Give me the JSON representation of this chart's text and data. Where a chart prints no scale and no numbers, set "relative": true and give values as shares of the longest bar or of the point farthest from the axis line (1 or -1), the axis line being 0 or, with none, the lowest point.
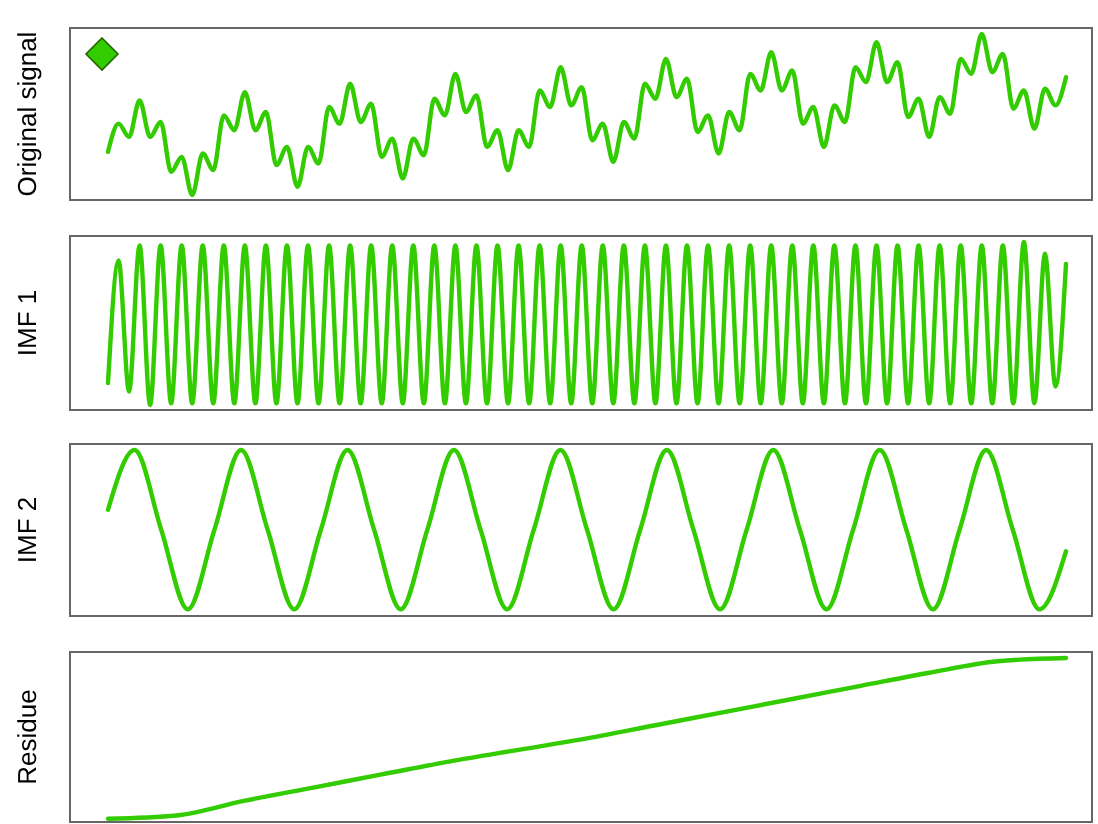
{
  "chart_data": [
    {
      "type": "line",
      "ylabel": "Original signal",
      "relative": true,
      "color": "#33cc00",
      "categories": [
        null,
        null,
        null,
        null,
        null,
        null,
        null,
        null,
        null,
        null,
        null,
        null,
        null,
        null,
        null,
        null,
        null,
        null,
        null,
        null,
        null,
        null,
        null,
        null,
        null,
        null,
        null,
        null,
        null,
        null,
        null,
        null,
        null,
        null,
        null,
        null,
        null,
        null,
        null,
        null,
        null,
        null,
        null,
        null,
        null,
        null,
        null,
        null,
        null,
        null,
        null,
        null,
        null,
        null,
        null,
        null,
        null,
        null,
        null,
        null,
        null,
        null,
        null,
        null,
        null,
        null,
        null,
        null,
        null,
        null,
        null,
        null,
        null,
        null,
        null,
        null,
        null,
        null,
        null,
        null,
        null,
        null,
        null,
        null,
        null,
        null,
        null,
        null,
        null,
        null,
        null,
        null
      ],
      "values": [
        0.29,
        0.46,
        0.38,
        0.6,
        0.38,
        0.47,
        0.17,
        0.26,
        0.03,
        0.28,
        0.18,
        0.51,
        0.42,
        0.65,
        0.42,
        0.53,
        0.21,
        0.32,
        0.08,
        0.32,
        0.22,
        0.56,
        0.46,
        0.7,
        0.47,
        0.58,
        0.26,
        0.37,
        0.13,
        0.37,
        0.27,
        0.61,
        0.51,
        0.76,
        0.53,
        0.63,
        0.32,
        0.42,
        0.18,
        0.42,
        0.32,
        0.66,
        0.56,
        0.8,
        0.57,
        0.68,
        0.36,
        0.46,
        0.23,
        0.47,
        0.37,
        0.7,
        0.61,
        0.85,
        0.62,
        0.73,
        0.41,
        0.51,
        0.28,
        0.53,
        0.42,
        0.76,
        0.66,
        0.89,
        0.66,
        0.78,
        0.46,
        0.56,
        0.32,
        0.57,
        0.47,
        0.8,
        0.71,
        0.95,
        0.71,
        0.83,
        0.5,
        0.61,
        0.38,
        0.62,
        0.52,
        0.85,
        0.76,
        1.0,
        0.77,
        0.88,
        0.55,
        0.66,
        0.43,
        0.67,
        0.57,
        0.74
      ]
    },
    {
      "type": "line",
      "ylabel": "IMF 1",
      "relative": true,
      "color": "#33cc00",
      "categories": [
        null,
        null,
        null,
        null,
        null,
        null,
        null,
        null,
        null,
        null,
        null,
        null,
        null,
        null,
        null,
        null,
        null,
        null,
        null,
        null,
        null,
        null,
        null,
        null,
        null,
        null,
        null,
        null,
        null,
        null,
        null,
        null,
        null,
        null,
        null,
        null,
        null,
        null,
        null,
        null,
        null,
        null,
        null,
        null,
        null,
        null,
        null,
        null,
        null,
        null,
        null,
        null,
        null,
        null,
        null,
        null,
        null,
        null,
        null,
        null,
        null,
        null,
        null,
        null,
        null,
        null,
        null,
        null,
        null,
        null,
        null,
        null,
        null,
        null,
        null,
        null,
        null,
        null,
        null,
        null,
        null,
        null,
        null,
        null,
        null,
        null,
        null,
        null,
        null,
        null,
        null,
        null
      ],
      "values": [
        0.16,
        0.89,
        0.11,
        0.98,
        0.03,
        0.98,
        0.04,
        0.98,
        0.04,
        0.98,
        0.04,
        0.98,
        0.04,
        0.98,
        0.04,
        0.98,
        0.04,
        0.98,
        0.04,
        0.98,
        0.04,
        0.98,
        0.04,
        0.98,
        0.04,
        0.98,
        0.04,
        0.98,
        0.04,
        0.98,
        0.04,
        0.98,
        0.04,
        0.98,
        0.04,
        0.98,
        0.04,
        0.98,
        0.04,
        0.98,
        0.04,
        0.98,
        0.04,
        0.98,
        0.04,
        0.98,
        0.04,
        0.98,
        0.04,
        0.98,
        0.04,
        0.98,
        0.04,
        0.98,
        0.04,
        0.98,
        0.04,
        0.98,
        0.04,
        0.98,
        0.04,
        0.98,
        0.04,
        0.98,
        0.04,
        0.98,
        0.04,
        0.98,
        0.04,
        0.98,
        0.04,
        0.98,
        0.04,
        0.98,
        0.04,
        0.98,
        0.04,
        0.98,
        0.04,
        0.98,
        0.04,
        0.98,
        0.04,
        0.98,
        0.04,
        0.98,
        0.04,
        1.0,
        0.04,
        0.93,
        0.14,
        0.87
      ]
    },
    {
      "type": "line",
      "ylabel": "IMF 2",
      "relative": true,
      "color": "#33cc00",
      "categories": [
        null,
        null,
        null,
        null,
        null,
        null,
        null,
        null,
        null,
        null,
        null,
        null,
        null,
        null,
        null,
        null,
        null,
        null,
        null,
        null,
        null,
        null,
        null,
        null,
        null,
        null,
        null,
        null,
        null,
        null,
        null,
        null,
        null,
        null,
        null,
        null,
        null
      ],
      "values": [
        0.64,
        1.0,
        0.52,
        0.04,
        0.52,
        1.0,
        0.52,
        0.04,
        0.52,
        1.0,
        0.52,
        0.04,
        0.52,
        1.0,
        0.52,
        0.04,
        0.52,
        1.0,
        0.52,
        0.04,
        0.52,
        1.0,
        0.52,
        0.04,
        0.52,
        1.0,
        0.52,
        0.04,
        0.52,
        1.0,
        0.52,
        0.04,
        0.52,
        1.0,
        0.52,
        0.04,
        0.39
      ]
    },
    {
      "type": "line",
      "ylabel": "Residue",
      "relative": true,
      "color": "#33cc00",
      "categories": [
        null,
        null,
        null,
        null,
        null,
        null,
        null,
        null,
        null,
        null,
        null,
        null,
        null,
        null,
        null
      ],
      "values": [
        0.02,
        0.04,
        0.13,
        0.21,
        0.29,
        0.37,
        0.44,
        0.51,
        0.59,
        0.67,
        0.75,
        0.83,
        0.91,
        0.98,
        1.0
      ]
    }
  ]
}
